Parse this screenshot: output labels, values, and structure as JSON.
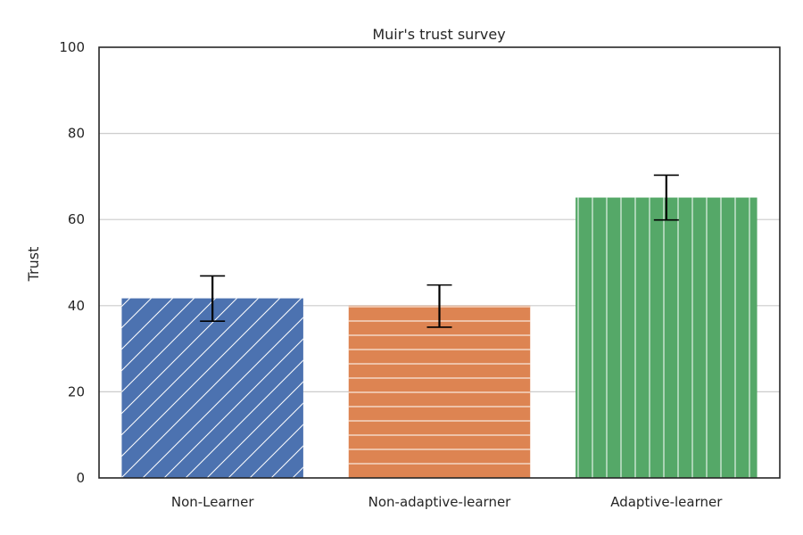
{
  "chart_data": {
    "type": "bar",
    "title": "Muir's trust survey",
    "xlabel": "",
    "ylabel": "Trust",
    "ylim": [
      0,
      100
    ],
    "yticks": [
      0,
      20,
      40,
      60,
      80,
      100
    ],
    "grid": "horizontal",
    "categories": [
      "Non-Learner",
      "Non-adaptive-learner",
      "Adaptive-learner"
    ],
    "values": [
      41.7,
      40.0,
      65.1
    ],
    "errors": [
      {
        "low": 36.4,
        "high": 46.9
      },
      {
        "low": 35.0,
        "high": 44.8
      },
      {
        "low": 59.9,
        "high": 70.3
      }
    ],
    "colors": [
      "#4c72b0",
      "#dd8452",
      "#55a868"
    ],
    "hatches": [
      "diagonal",
      "horizontal",
      "vertical"
    ]
  }
}
